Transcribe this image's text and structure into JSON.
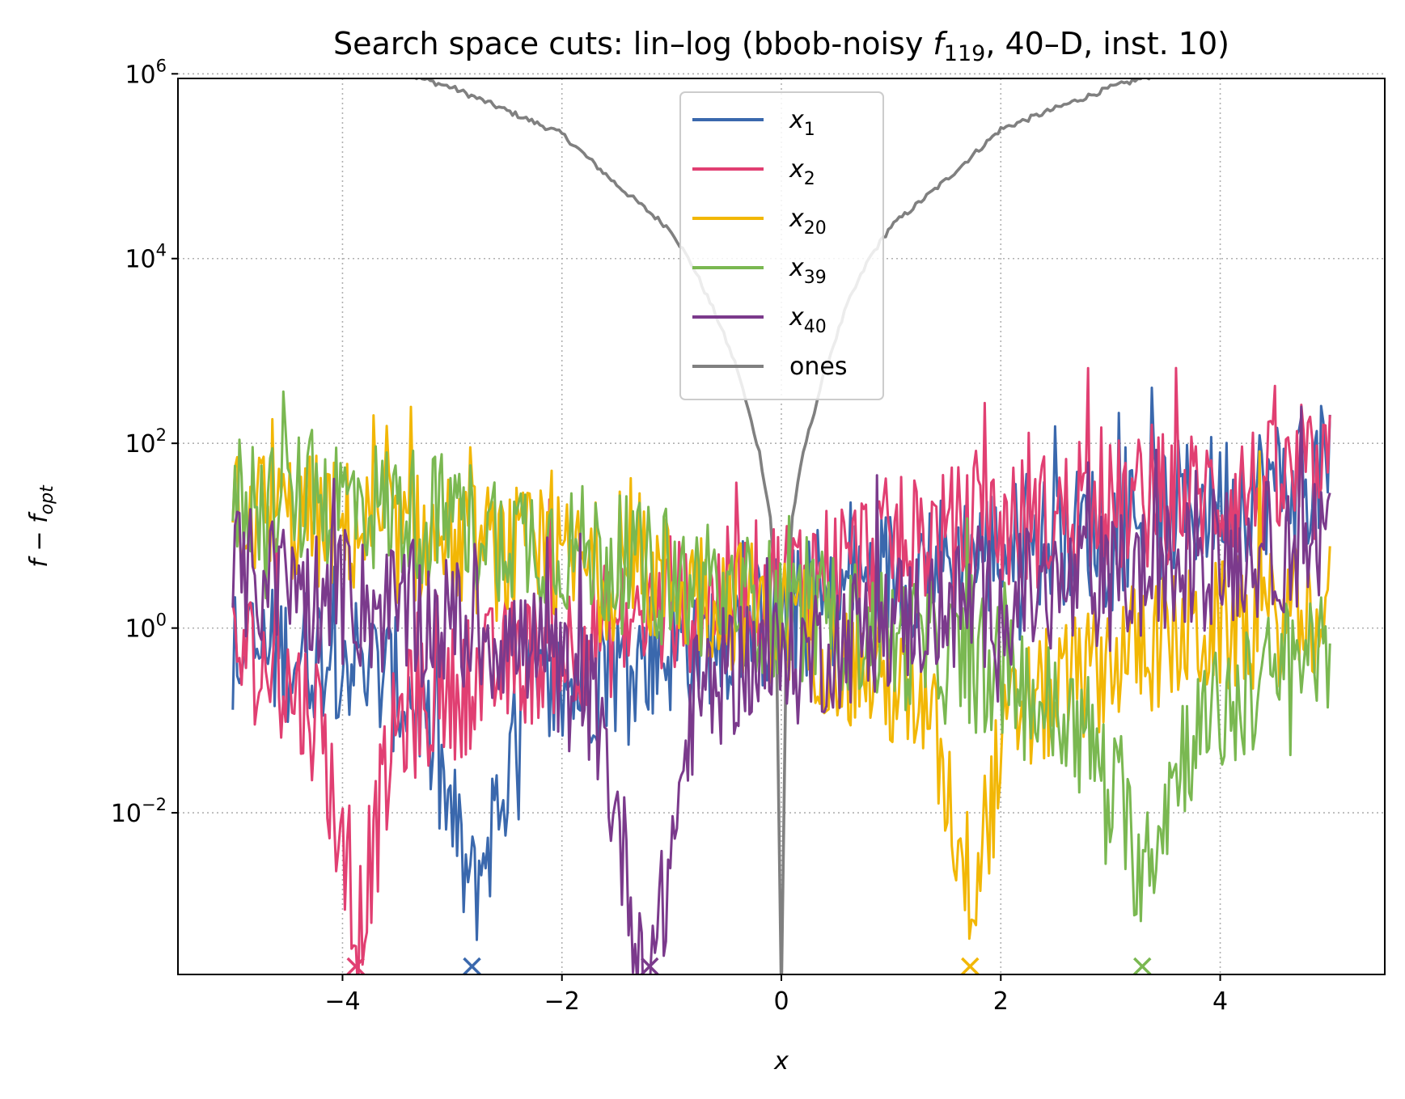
{
  "chart_data": {
    "type": "line",
    "title": "Search space cuts: lin–log (bbob-noisy f119, 40–D, inst. 10)",
    "title_parts": {
      "prefix": "Search space cuts: lin–log (bbob-noisy ",
      "f": "f",
      "f_sub": "119",
      "suffix": ", 40–D, inst. 10)"
    },
    "xlabel": "x",
    "ylabel": "f − f_opt",
    "ylabel_parts": {
      "main": "f − f",
      "sub": "opt"
    },
    "yscale": "log",
    "xlim": [
      -5.5,
      5.5
    ],
    "ylim_log10": [
      -3.75,
      5.95
    ],
    "xticks": [
      -4,
      -2,
      0,
      2,
      4
    ],
    "xtick_labels": [
      "−4",
      "−2",
      "0",
      "2",
      "4"
    ],
    "yticks_log10": [
      -2,
      0,
      2,
      4,
      6
    ],
    "ytick_labels": [
      {
        "base": "10",
        "exp": "−2"
      },
      {
        "base": "10",
        "exp": "0"
      },
      {
        "base": "10",
        "exp": "2"
      },
      {
        "base": "10",
        "exp": "4"
      },
      {
        "base": "10",
        "exp": "6"
      }
    ],
    "grid": true,
    "legend_position": "top-center",
    "x_range": [
      -5,
      5
    ],
    "series": [
      {
        "name": "x1",
        "label_main": "x",
        "label_sub": "1",
        "color": "#3a68ad",
        "optimum_x": -2.82,
        "profile_log10": [
          [
            -5.0,
            -0.3
          ],
          [
            -4.0,
            -0.25
          ],
          [
            -3.3,
            -0.8
          ],
          [
            -2.82,
            -2.9
          ],
          [
            -2.3,
            -0.8
          ],
          [
            -1.0,
            -0.2
          ],
          [
            0.0,
            0.1
          ],
          [
            1.0,
            0.6
          ],
          [
            3.0,
            1.1
          ],
          [
            5.0,
            1.7
          ]
        ]
      },
      {
        "name": "x2",
        "label_main": "x",
        "label_sub": "2",
        "color": "#e13f72",
        "optimum_x": -3.88,
        "profile_log10": [
          [
            -5.0,
            -0.2
          ],
          [
            -4.6,
            -0.5
          ],
          [
            -4.2,
            -1.0
          ],
          [
            -3.88,
            -3.4
          ],
          [
            -3.5,
            -1.0
          ],
          [
            -2.5,
            -0.4
          ],
          [
            -1.0,
            0.2
          ],
          [
            0.0,
            0.5
          ],
          [
            1.0,
            0.9
          ],
          [
            3.0,
            1.3
          ],
          [
            5.0,
            1.6
          ]
        ]
      },
      {
        "name": "x20",
        "label_main": "x",
        "label_sub": "20",
        "color": "#f2b705",
        "optimum_x": 1.72,
        "profile_log10": [
          [
            -5.0,
            1.3
          ],
          [
            -4.0,
            1.1
          ],
          [
            -2.0,
            0.7
          ],
          [
            -1.0,
            0.5
          ],
          [
            0.0,
            0.1
          ],
          [
            1.0,
            -0.6
          ],
          [
            1.4,
            -1.2
          ],
          [
            1.72,
            -2.8
          ],
          [
            2.1,
            -1.0
          ],
          [
            3.0,
            -0.3
          ],
          [
            4.0,
            0.0
          ],
          [
            5.0,
            0.2
          ]
        ]
      },
      {
        "name": "x39",
        "label_main": "x",
        "label_sub": "39",
        "color": "#7ab851",
        "optimum_x": 3.29,
        "profile_log10": [
          [
            -5.0,
            1.4
          ],
          [
            -4.0,
            1.4
          ],
          [
            -2.0,
            0.9
          ],
          [
            -1.0,
            0.5
          ],
          [
            0.0,
            0.2
          ],
          [
            1.0,
            -0.1
          ],
          [
            2.0,
            -0.5
          ],
          [
            2.8,
            -1.2
          ],
          [
            3.29,
            -2.6
          ],
          [
            3.7,
            -1.2
          ],
          [
            4.4,
            -0.6
          ],
          [
            5.0,
            -0.1
          ]
        ]
      },
      {
        "name": "x40",
        "label_main": "x",
        "label_sub": "40",
        "color": "#7b3a8c",
        "optimum_x": -1.2,
        "profile_log10": [
          [
            -5.0,
            0.6
          ],
          [
            -4.0,
            0.3
          ],
          [
            -2.5,
            -0.1
          ],
          [
            -1.7,
            -0.8
          ],
          [
            -1.2,
            -4.0
          ],
          [
            -0.8,
            -0.8
          ],
          [
            -0.3,
            -0.3
          ],
          [
            0.0,
            -0.4
          ],
          [
            1.0,
            0.1
          ],
          [
            3.0,
            0.5
          ],
          [
            5.0,
            1.0
          ]
        ]
      },
      {
        "name": "ones",
        "label_main": "ones",
        "label_sub": "",
        "color": "#808080",
        "profile_log10": [
          [
            -5.0,
            6.45
          ],
          [
            -4.0,
            6.2
          ],
          [
            -3.0,
            5.85
          ],
          [
            -2.0,
            5.35
          ],
          [
            -1.5,
            4.8
          ],
          [
            -1.0,
            4.3
          ],
          [
            -0.8,
            3.9
          ],
          [
            -0.6,
            3.4
          ],
          [
            -0.4,
            2.8
          ],
          [
            -0.2,
            1.9
          ],
          [
            -0.1,
            1.2
          ],
          [
            -0.05,
            0.3
          ],
          [
            0.0,
            -4.0
          ],
          [
            0.05,
            0.3
          ],
          [
            0.1,
            1.2
          ],
          [
            0.2,
            1.9
          ],
          [
            0.4,
            2.8
          ],
          [
            0.6,
            3.5
          ],
          [
            0.8,
            4.0
          ],
          [
            1.0,
            4.35
          ],
          [
            1.5,
            4.85
          ],
          [
            2.0,
            5.4
          ],
          [
            3.0,
            5.85
          ],
          [
            4.0,
            6.2
          ],
          [
            5.0,
            6.48
          ]
        ]
      }
    ]
  }
}
